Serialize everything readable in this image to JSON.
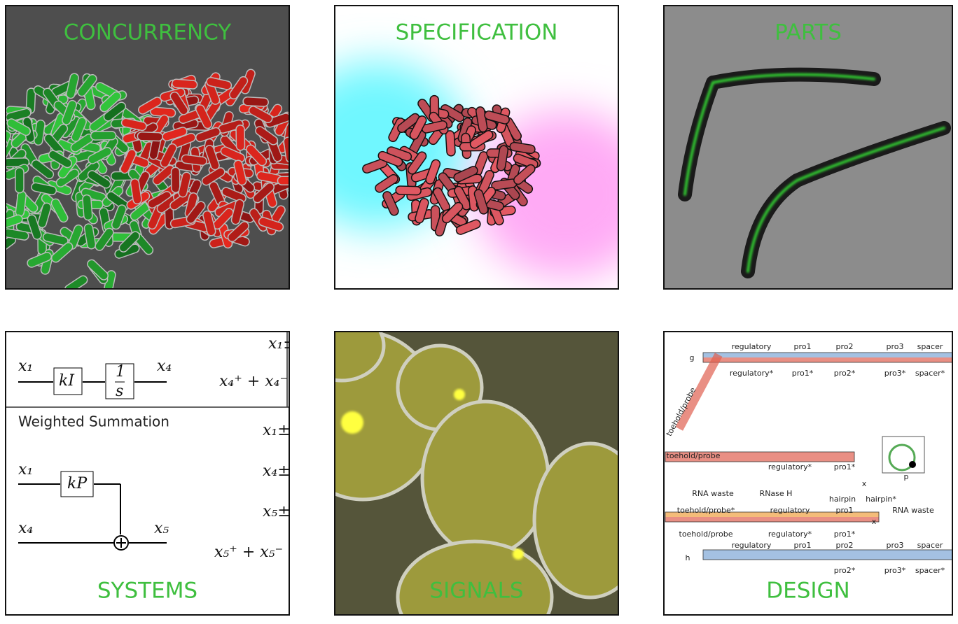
{
  "tiles": [
    {
      "label": "CONCURRENCY"
    },
    {
      "label": "SPECIFICATION"
    },
    {
      "label": "PARTS"
    },
    {
      "label": "SYSTEMS"
    },
    {
      "label": "SIGNALS"
    },
    {
      "label": "DESIGN"
    }
  ],
  "systems": {
    "heading": "Weighted Summation",
    "texts": [
      "x₁",
      "kI",
      "1",
      "s",
      "x₄",
      "x₁",
      "kP",
      "x₄",
      "x₅",
      "x₁±",
      "x₄⁺ + x₄⁻",
      "x₁±",
      "x₄±",
      "x₅±",
      "x₅⁺ + x₅⁻"
    ]
  },
  "design": {
    "texts": [
      "regulatory",
      "pro1",
      "pro2",
      "pro3",
      "spacer",
      "g",
      "regulatory*",
      "pro1*",
      "pro2*",
      "pro3*",
      "spacer*",
      "toehold/probe",
      "toehold/probe",
      "regulatory*",
      "pro1*",
      "RNA waste",
      "RNase H",
      "hairpin",
      "hairpin*",
      "RNA waste",
      "toehold/probe*",
      "regulatory",
      "pro1",
      "toehold/probe",
      "regulatory*",
      "pro1*",
      "regulatory",
      "pro1",
      "pro2",
      "pro3",
      "spacer",
      "h",
      "pro2*",
      "pro3*",
      "spacer*",
      "p",
      "x",
      "x"
    ]
  }
}
